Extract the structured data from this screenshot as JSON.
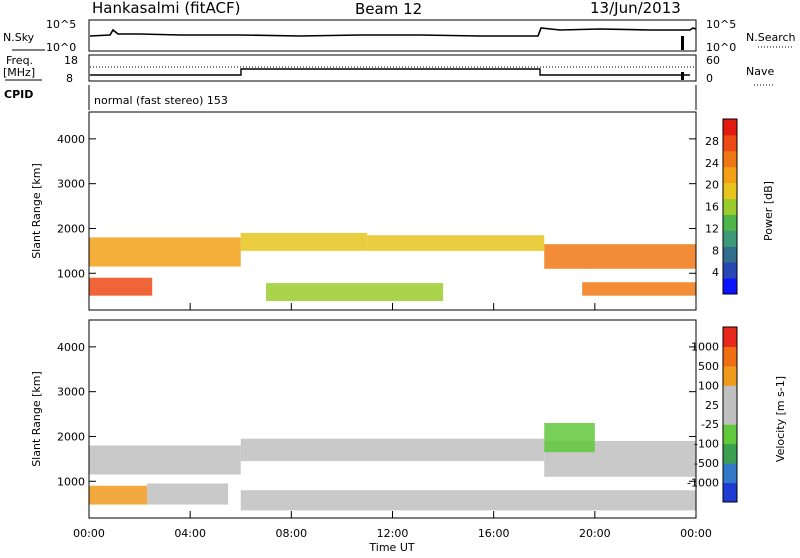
{
  "header": {
    "station": "Hankasalmi (fitACF)",
    "beam": "Beam 12",
    "date": "13/Jun/2013"
  },
  "noise_panel": {
    "left_label": "N.Sky",
    "right_label": "N.Search",
    "left_ticks": [
      "10^5",
      "10^0"
    ],
    "right_ticks": [
      "10^5",
      "10^0"
    ]
  },
  "freq_panel": {
    "left_label_line1": "Freq.",
    "left_label_line2": "[MHz]",
    "left_ticks": [
      "18",
      "8"
    ],
    "right_label": "Nave",
    "right_ticks": [
      "60",
      "0"
    ]
  },
  "cpid_panel": {
    "label": "CPID",
    "text": "normal (fast stereo) 153"
  },
  "x_axis": {
    "ticks": [
      "00:00",
      "04:00",
      "08:00",
      "12:00",
      "16:00",
      "20:00",
      "00:00"
    ],
    "label": "Time UT"
  },
  "chart_data": [
    {
      "type": "heatmap",
      "panel": "power",
      "ylabel": "Slant Range [km]",
      "y_ticks": [
        1000,
        2000,
        3000,
        4000
      ],
      "ylim": [
        180,
        4600
      ],
      "xlim_hours": [
        0,
        24
      ],
      "colorbar_label": "Power [dB]",
      "colorbar_ticks": [
        4,
        8,
        12,
        16,
        20,
        24,
        28
      ],
      "colorbar_colors": [
        "#0a14ff",
        "#2846b4",
        "#2f6e8c",
        "#3c9a78",
        "#4fb44a",
        "#9acc2c",
        "#e8c41e",
        "#f2a018",
        "#f07814",
        "#ec4a14",
        "#e21a10"
      ],
      "bands": [
        {
          "t0": 0.0,
          "t1": 6.0,
          "r0": 1150,
          "r1": 1800,
          "level": 7
        },
        {
          "t0": 6.0,
          "t1": 11.0,
          "r0": 1500,
          "r1": 1900,
          "level": 6
        },
        {
          "t0": 11.0,
          "t1": 18.0,
          "r0": 1500,
          "r1": 1850,
          "level": 6
        },
        {
          "t0": 18.0,
          "t1": 24.0,
          "r0": 1100,
          "r1": 1650,
          "level": 8
        },
        {
          "t0": 0.0,
          "t1": 2.5,
          "r0": 500,
          "r1": 900,
          "level": 9
        },
        {
          "t0": 7.0,
          "t1": 14.0,
          "r0": 380,
          "r1": 780,
          "level": 5
        },
        {
          "t0": 19.5,
          "t1": 24.0,
          "r0": 500,
          "r1": 800,
          "level": 8
        }
      ]
    },
    {
      "type": "heatmap",
      "panel": "velocity",
      "ylabel": "Slant Range [km]",
      "y_ticks": [
        1000,
        2000,
        3000,
        4000
      ],
      "ylim": [
        180,
        4600
      ],
      "xlim_hours": [
        0,
        24
      ],
      "colorbar_label": "Velocity [m s-1]",
      "colorbar_ticks": [
        1000,
        500,
        100,
        25,
        -25,
        -100,
        -500,
        -1000
      ],
      "colorbar_colors": [
        "#1e3cd2",
        "#3278c8",
        "#3aa050",
        "#62c83c",
        "#c0c0c0",
        "#c0c0c0",
        "#f09a1e",
        "#ee6e14",
        "#e8281a"
      ],
      "bands": [
        {
          "t0": 0.0,
          "t1": 6.0,
          "r0": 1150,
          "r1": 1800,
          "level": 4
        },
        {
          "t0": 6.0,
          "t1": 18.0,
          "r0": 1450,
          "r1": 1950,
          "level": 4
        },
        {
          "t0": 18.0,
          "t1": 24.0,
          "r0": 1100,
          "r1": 1900,
          "level": 4
        },
        {
          "t0": 0.0,
          "t1": 2.3,
          "r0": 480,
          "r1": 900,
          "level": 6
        },
        {
          "t0": 2.3,
          "t1": 5.5,
          "r0": 480,
          "r1": 950,
          "level": 4
        },
        {
          "t0": 6.0,
          "t1": 24.0,
          "r0": 350,
          "r1": 800,
          "level": 4
        },
        {
          "t0": 18.0,
          "t1": 20.0,
          "r0": 1650,
          "r1": 2300,
          "level": 3
        }
      ]
    }
  ]
}
